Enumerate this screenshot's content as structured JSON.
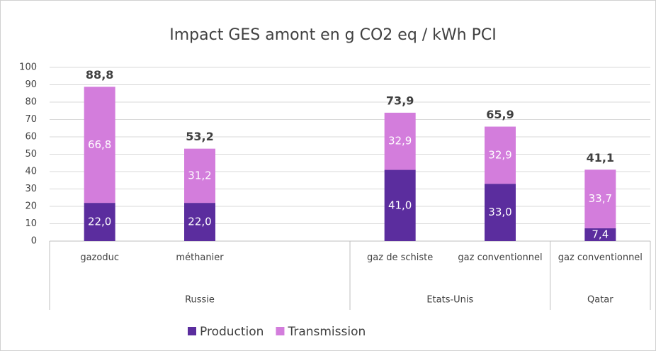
{
  "chart_data": {
    "type": "bar",
    "stacked": true,
    "title": "Impact GES amont en g CO2 eq / kWh PCI",
    "categories": [
      "gazoduc",
      "méthanier",
      null,
      "gaz de schiste",
      "gaz conventionnel",
      "gaz conventionnel"
    ],
    "group_labels": [
      "Russie",
      "Russie",
      "Russie",
      "Etats-Unis",
      "Etats-Unis",
      "Qatar"
    ],
    "series": [
      {
        "name": "Production",
        "color": "#5b2d9e",
        "values": [
          22.0,
          22.0,
          null,
          41.0,
          33.0,
          7.4
        ],
        "value_labels": [
          "22,0",
          "22,0",
          null,
          "41,0",
          "33,0",
          "7,4"
        ]
      },
      {
        "name": "Transmission",
        "color": "#d37ddc",
        "values": [
          66.8,
          31.2,
          null,
          32.9,
          32.9,
          33.7
        ],
        "value_labels": [
          "66,8",
          "31,2",
          null,
          "32,9",
          "32,9",
          "33,7"
        ]
      }
    ],
    "totals": [
      88.8,
      53.2,
      null,
      73.9,
      65.9,
      41.1
    ],
    "total_labels": [
      "88,8",
      "53,2",
      null,
      "73,9",
      "65,9",
      "41,1"
    ],
    "ylim": [
      0,
      100
    ],
    "yticks": [
      0,
      10,
      20,
      30,
      40,
      50,
      60,
      70,
      80,
      90,
      100
    ],
    "grid": true,
    "legend": "bottom"
  }
}
